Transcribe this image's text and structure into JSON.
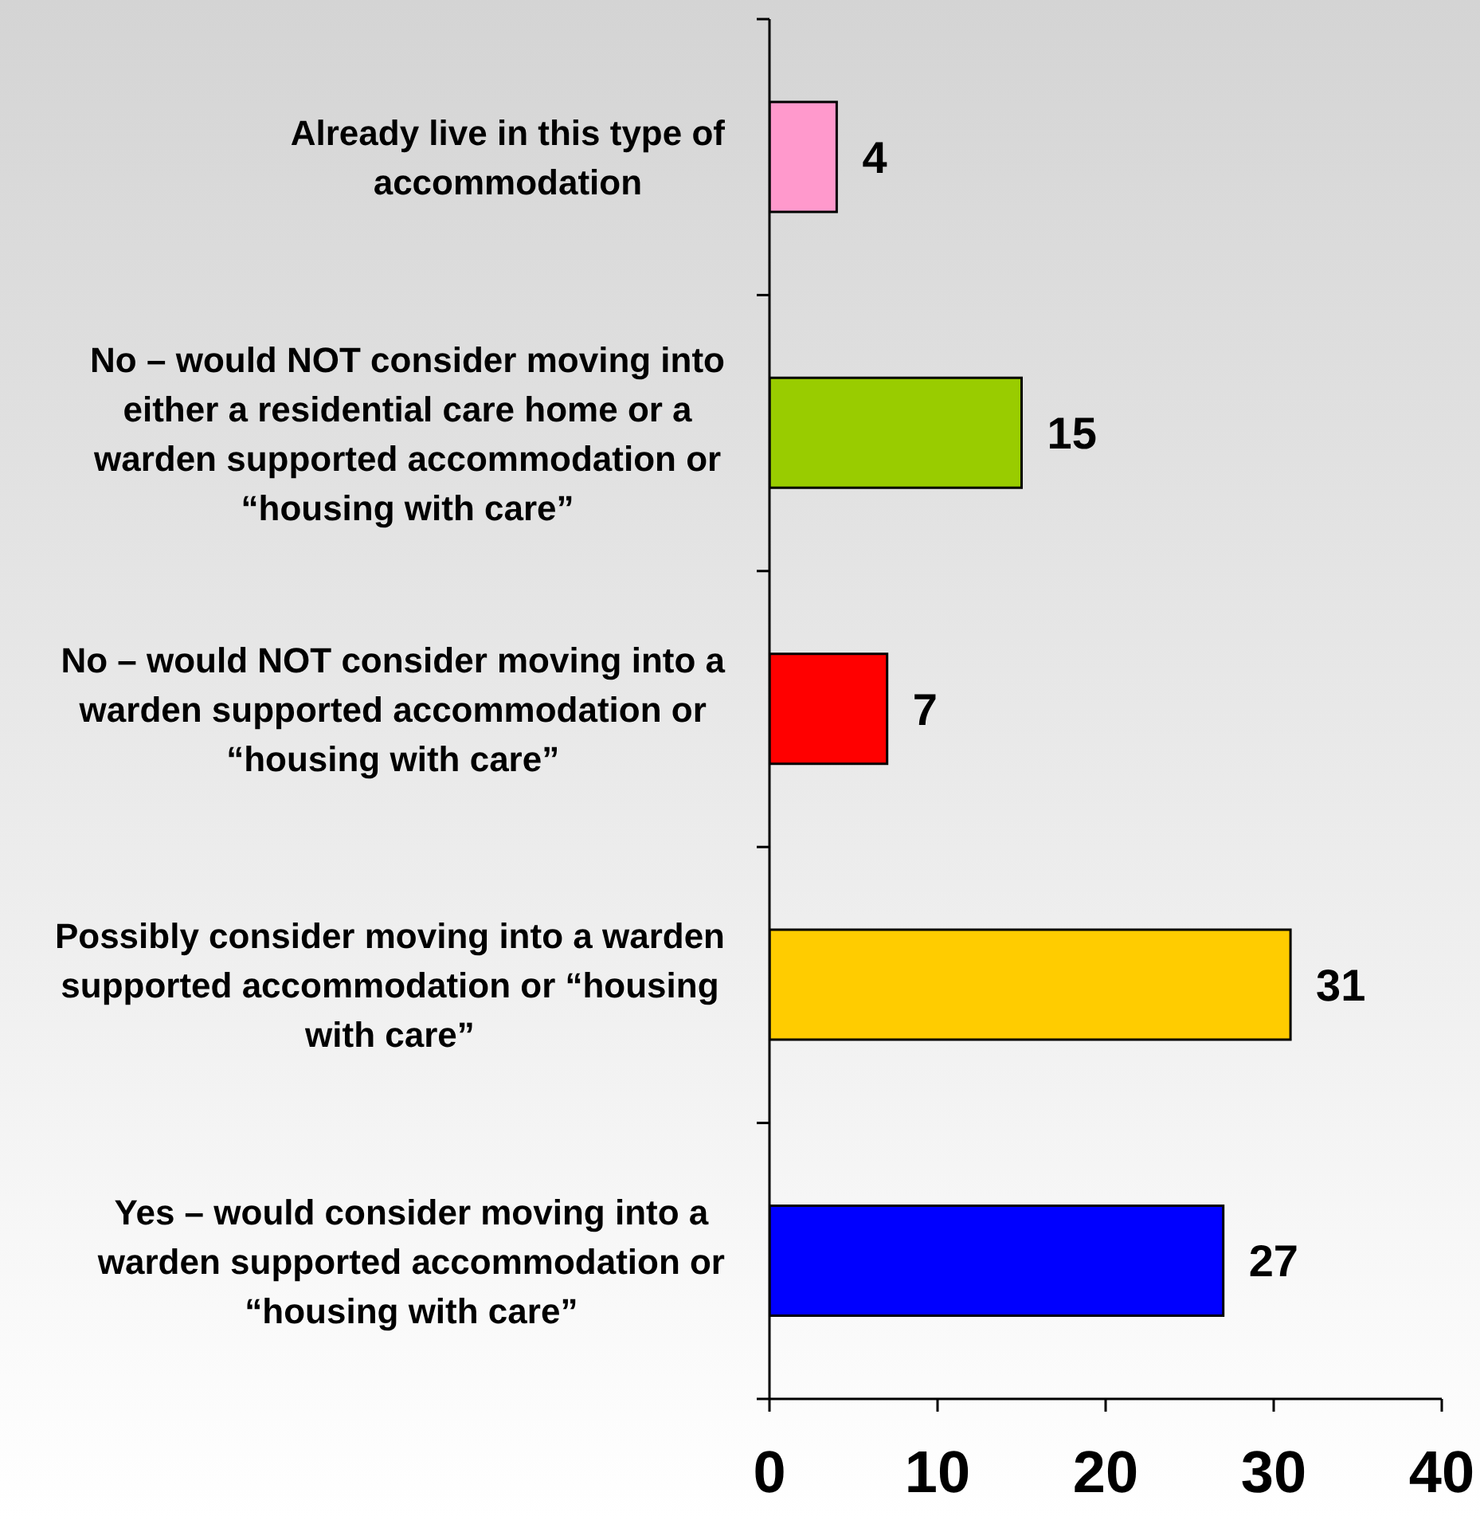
{
  "chart_data": {
    "type": "bar",
    "orientation": "horizontal",
    "categories": [
      "Already live in this type of accommodation",
      "No – would NOT consider moving into either a residential care home or a warden supported accommodation or “housing with care”",
      "No – would NOT consider moving into a warden supported accommodation or “housing with care”",
      "Possibly consider moving into a warden supported accommodation or “housing with care”",
      "Yes – would consider moving into a warden supported accommodation or “housing with care”"
    ],
    "values": [
      4,
      15,
      7,
      31,
      27
    ],
    "colors": [
      "#ff99cc",
      "#99cc00",
      "#ff0000",
      "#ffcc00",
      "#0000ff"
    ],
    "xlim": [
      0,
      40
    ],
    "xticks": [
      0,
      10,
      20,
      30,
      40
    ],
    "data_labels": true
  }
}
